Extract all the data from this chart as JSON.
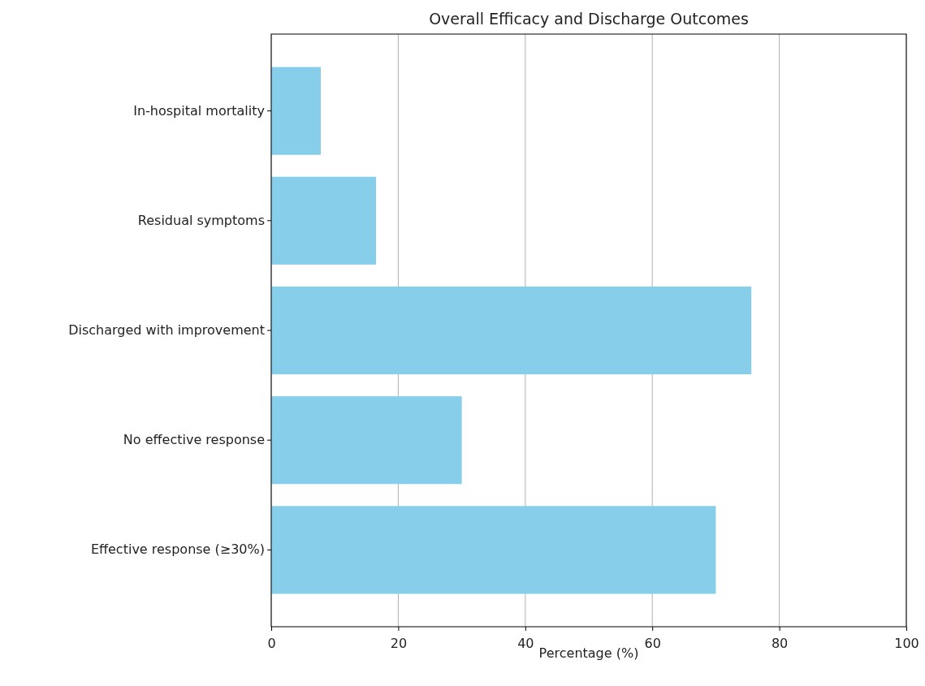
{
  "chart_data": {
    "type": "bar",
    "orientation": "horizontal",
    "title": "Overall Efficacy and Discharge Outcomes",
    "xlabel": "Percentage (%)",
    "categories": [
      "In-hospital mortality",
      "Residual symptoms",
      "Discharged with improvement",
      "No effective response",
      "Effective response (≥30%)"
    ],
    "values": [
      7.8,
      16.5,
      75.6,
      30,
      70
    ],
    "color": "#87ceeb",
    "xlim": [
      0,
      100
    ],
    "xticks": [
      0,
      20,
      40,
      60,
      80,
      100
    ],
    "grid": "x"
  }
}
